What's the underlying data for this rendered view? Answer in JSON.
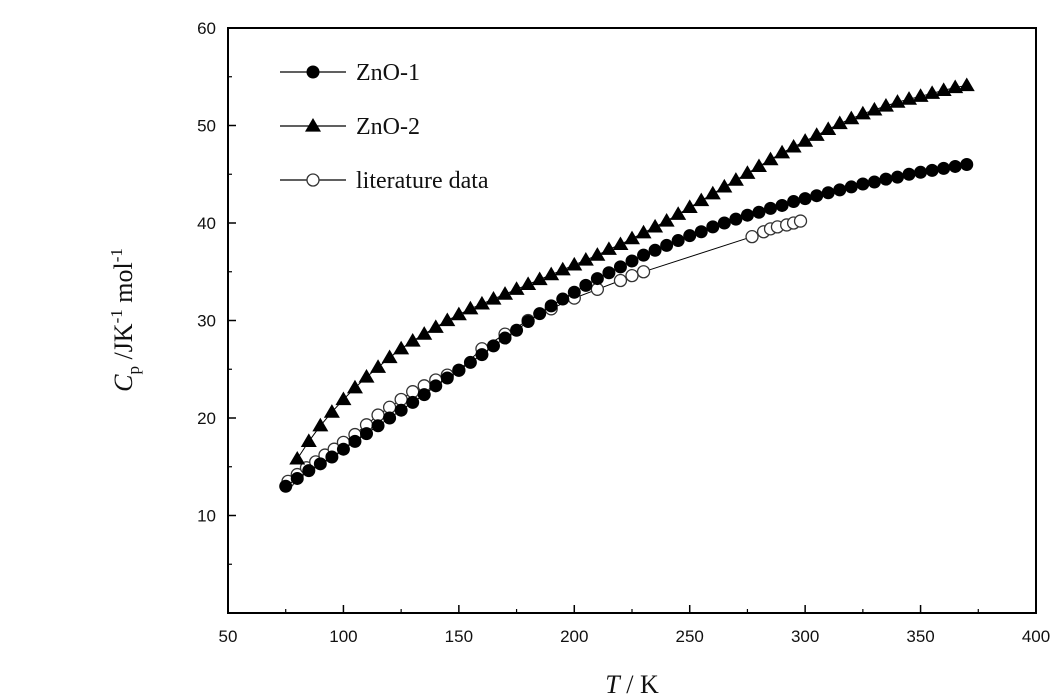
{
  "chart_data": {
    "type": "scatter",
    "xlabel": "T / K",
    "ylabel": "C_p /JK^-1 mol^-1",
    "x_axis": {
      "range": [
        50,
        400
      ],
      "ticks": [
        "50",
        "100",
        "150",
        "200",
        "250",
        "300",
        "350",
        "400"
      ]
    },
    "y_axis": {
      "range": [
        0,
        60
      ],
      "ticks": [
        "10",
        "20",
        "30",
        "40",
        "50",
        "60"
      ]
    },
    "legend": {
      "position": "top-left"
    },
    "grid": false,
    "series": [
      {
        "name": "ZnO-1",
        "marker": "filled-circle",
        "x": [
          75,
          80,
          85,
          90,
          95,
          100,
          105,
          110,
          115,
          120,
          125,
          130,
          135,
          140,
          145,
          150,
          155,
          160,
          165,
          170,
          175,
          180,
          185,
          190,
          195,
          200,
          205,
          210,
          215,
          220,
          225,
          230,
          235,
          240,
          245,
          250,
          255,
          260,
          265,
          270,
          275,
          280,
          285,
          290,
          295,
          300,
          305,
          310,
          315,
          320,
          325,
          330,
          335,
          340,
          345,
          350,
          355,
          360,
          365,
          370
        ],
        "y": [
          13.0,
          13.8,
          14.6,
          15.3,
          16.0,
          16.8,
          17.6,
          18.4,
          19.2,
          20.0,
          20.8,
          21.6,
          22.4,
          23.3,
          24.1,
          24.9,
          25.7,
          26.5,
          27.4,
          28.2,
          29.0,
          29.9,
          30.7,
          31.5,
          32.2,
          32.9,
          33.6,
          34.3,
          34.9,
          35.5,
          36.1,
          36.7,
          37.2,
          37.7,
          38.2,
          38.7,
          39.1,
          39.6,
          40.0,
          40.4,
          40.8,
          41.1,
          41.5,
          41.8,
          42.2,
          42.5,
          42.8,
          43.1,
          43.4,
          43.7,
          44.0,
          44.2,
          44.5,
          44.7,
          45.0,
          45.2,
          45.4,
          45.6,
          45.8,
          46.0
        ]
      },
      {
        "name": "ZnO-2",
        "marker": "filled-triangle",
        "x": [
          80,
          85,
          90,
          95,
          100,
          105,
          110,
          115,
          120,
          125,
          130,
          135,
          140,
          145,
          150,
          155,
          160,
          165,
          170,
          175,
          180,
          185,
          190,
          195,
          200,
          205,
          210,
          215,
          220,
          225,
          230,
          235,
          240,
          245,
          250,
          255,
          260,
          265,
          270,
          275,
          280,
          285,
          290,
          295,
          300,
          305,
          310,
          315,
          320,
          325,
          330,
          335,
          340,
          345,
          350,
          355,
          360,
          365,
          370
        ],
        "y": [
          15.8,
          17.6,
          19.2,
          20.6,
          21.9,
          23.1,
          24.2,
          25.2,
          26.2,
          27.1,
          27.9,
          28.6,
          29.3,
          30.0,
          30.6,
          31.2,
          31.7,
          32.2,
          32.7,
          33.2,
          33.7,
          34.2,
          34.7,
          35.2,
          35.7,
          36.2,
          36.7,
          37.3,
          37.8,
          38.4,
          39.0,
          39.6,
          40.2,
          40.9,
          41.6,
          42.3,
          43.0,
          43.7,
          44.4,
          45.1,
          45.8,
          46.5,
          47.2,
          47.8,
          48.4,
          49.0,
          49.6,
          50.2,
          50.7,
          51.2,
          51.6,
          52.0,
          52.4,
          52.7,
          53.0,
          53.3,
          53.6,
          53.9,
          54.1
        ]
      },
      {
        "name": "literature data",
        "marker": "open-circle",
        "x": [
          76,
          80,
          84,
          88,
          92,
          96,
          100,
          105,
          110,
          115,
          120,
          125,
          130,
          135,
          140,
          145,
          150,
          160,
          170,
          180,
          190,
          200,
          210,
          220,
          225,
          230,
          277,
          282,
          285,
          288,
          292,
          295,
          298
        ],
        "y": [
          13.5,
          14.2,
          14.9,
          15.5,
          16.2,
          16.8,
          17.5,
          18.3,
          19.3,
          20.3,
          21.1,
          21.9,
          22.7,
          23.3,
          23.9,
          24.4,
          24.9,
          27.1,
          28.6,
          30.0,
          31.2,
          32.3,
          33.2,
          34.1,
          34.6,
          35.0,
          38.6,
          39.1,
          39.4,
          39.6,
          39.8,
          40.0,
          40.2
        ]
      }
    ]
  }
}
